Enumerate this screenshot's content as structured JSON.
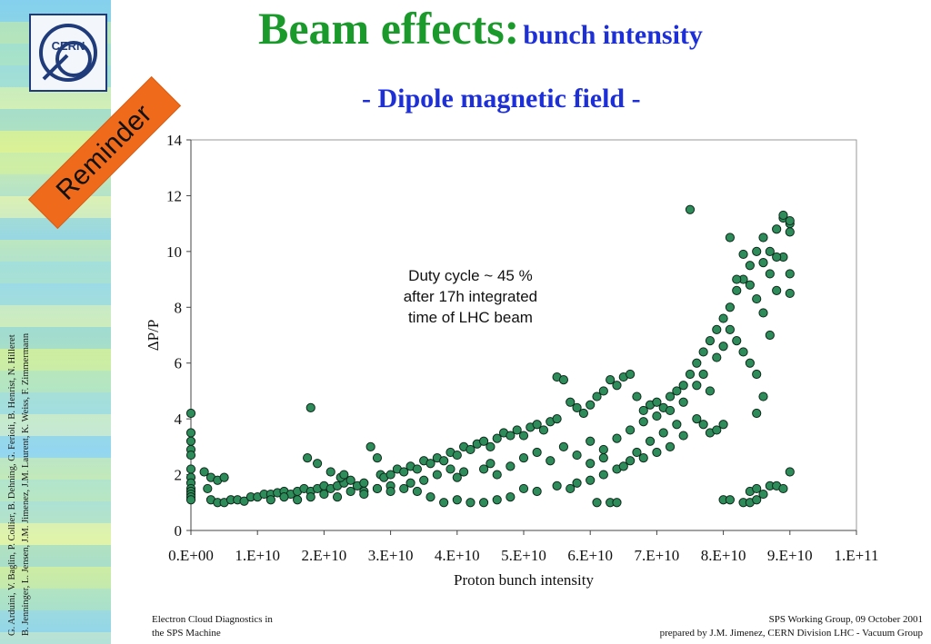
{
  "slide": {
    "title_main": "Beam effects:",
    "title_sub": "bunch intensity",
    "subtitle": "- Dipole magnetic field -",
    "badge": "Reminder",
    "logo_text": "CERN",
    "authors_line1": "G. Arduini, V. Baglin, P. Collier, B. Dehning, G. Ferioli, B. Henrist, N. Hilleret",
    "authors_line2": "B. Jenninger, L. Jensen, J.M. Jimenez, J.M. Laurent, K. Weiss, F. Zimmermann",
    "footer_left_1": "Electron Cloud Diagnostics in",
    "footer_left_2": "the SPS Machine",
    "footer_right_1": "SPS Working Group, 09 October 2001",
    "footer_right_2": "prepared by J.M. Jimenez, CERN Division LHC - Vacuum Group"
  },
  "colors": {
    "title_green": "#1b9a2c",
    "title_blue": "#1d2fd6",
    "badge_orange": "#ef6b1b",
    "marker_fill": "#2e8b5a",
    "marker_stroke": "#0d2a1a"
  },
  "chart_data": {
    "type": "scatter",
    "title": "",
    "xlabel": "Proton bunch intensity",
    "ylabel": "ΔP/P",
    "xlim": [
      0,
      100000000000
    ],
    "ylim": [
      0,
      14
    ],
    "xticks": [
      0,
      10000000000,
      20000000000,
      30000000000,
      40000000000,
      50000000000,
      60000000000,
      70000000000,
      80000000000,
      90000000000,
      100000000000
    ],
    "xtick_labels": [
      "0.E+00",
      "1.E+10",
      "2.E+10",
      "3.E+10",
      "4.E+10",
      "5.E+10",
      "6.E+10",
      "7.E+10",
      "8.E+10",
      "9.E+10",
      "1.E+11"
    ],
    "yticks": [
      0,
      2,
      4,
      6,
      8,
      10,
      12,
      14
    ],
    "ytick_labels": [
      "0",
      "2",
      "4",
      "6",
      "8",
      "10",
      "12",
      "14"
    ],
    "grid": false,
    "annotation": [
      "Duty cycle ~ 45 %",
      "after 17h integrated",
      "time of LHC beam"
    ],
    "series": [
      {
        "points": [
          [
            0,
            4.2
          ],
          [
            0,
            3.5
          ],
          [
            0,
            3.2
          ],
          [
            0,
            2.9
          ],
          [
            0,
            2.7
          ],
          [
            0,
            2.2
          ],
          [
            0,
            1.9
          ],
          [
            0,
            1.7
          ],
          [
            0,
            1.5
          ],
          [
            0,
            1.4
          ],
          [
            0,
            1.3
          ],
          [
            0,
            1.2
          ],
          [
            0,
            1.1
          ],
          [
            2000000000,
            2.1
          ],
          [
            3000000000,
            1.9
          ],
          [
            4000000000,
            1.8
          ],
          [
            5000000000,
            1.9
          ],
          [
            2500000000,
            1.5
          ],
          [
            3000000000,
            1.1
          ],
          [
            4000000000,
            1.0
          ],
          [
            5000000000,
            1.0
          ],
          [
            6000000000,
            1.1
          ],
          [
            7000000000,
            1.1
          ],
          [
            8000000000,
            1.05
          ],
          [
            9000000000,
            1.2
          ],
          [
            10000000000,
            1.2
          ],
          [
            11000000000,
            1.3
          ],
          [
            12000000000,
            1.3
          ],
          [
            13000000000,
            1.35
          ],
          [
            14000000000,
            1.4
          ],
          [
            15000000000,
            1.3
          ],
          [
            16000000000,
            1.4
          ],
          [
            17000000000,
            1.5
          ],
          [
            18000000000,
            1.4
          ],
          [
            19000000000,
            1.5
          ],
          [
            20000000000,
            1.6
          ],
          [
            21000000000,
            1.5
          ],
          [
            22000000000,
            1.6
          ],
          [
            23000000000,
            1.7
          ],
          [
            24000000000,
            1.8
          ],
          [
            25000000000,
            1.6
          ],
          [
            26000000000,
            1.7
          ],
          [
            17500000000,
            2.6
          ],
          [
            18000000000,
            4.4
          ],
          [
            19000000000,
            2.4
          ],
          [
            21000000000,
            2.1
          ],
          [
            22500000000,
            1.9
          ],
          [
            23000000000,
            2.0
          ],
          [
            27000000000,
            3.0
          ],
          [
            28000000000,
            2.6
          ],
          [
            28500000000,
            2.0
          ],
          [
            29000000000,
            1.9
          ],
          [
            30000000000,
            2.0
          ],
          [
            31000000000,
            2.2
          ],
          [
            32000000000,
            2.1
          ],
          [
            33000000000,
            2.3
          ],
          [
            34000000000,
            2.2
          ],
          [
            35000000000,
            2.5
          ],
          [
            36000000000,
            2.4
          ],
          [
            37000000000,
            2.6
          ],
          [
            38000000000,
            2.5
          ],
          [
            39000000000,
            2.8
          ],
          [
            40000000000,
            2.7
          ],
          [
            41000000000,
            3.0
          ],
          [
            42000000000,
            2.9
          ],
          [
            43000000000,
            3.1
          ],
          [
            44000000000,
            3.2
          ],
          [
            45000000000,
            3.0
          ],
          [
            46000000000,
            3.3
          ],
          [
            47000000000,
            3.5
          ],
          [
            48000000000,
            3.4
          ],
          [
            49000000000,
            3.6
          ],
          [
            50000000000,
            3.4
          ],
          [
            51000000000,
            3.7
          ],
          [
            52000000000,
            3.8
          ],
          [
            53000000000,
            3.6
          ],
          [
            54000000000,
            3.9
          ],
          [
            55000000000,
            4.0
          ],
          [
            55000000000,
            5.5
          ],
          [
            56000000000,
            5.4
          ],
          [
            57000000000,
            4.6
          ],
          [
            58000000000,
            4.4
          ],
          [
            59000000000,
            4.2
          ],
          [
            60000000000,
            4.5
          ],
          [
            61000000000,
            4.8
          ],
          [
            62000000000,
            5.0
          ],
          [
            63000000000,
            5.4
          ],
          [
            64000000000,
            5.2
          ],
          [
            65000000000,
            5.5
          ],
          [
            66000000000,
            5.6
          ],
          [
            67000000000,
            4.8
          ],
          [
            68000000000,
            4.3
          ],
          [
            69000000000,
            4.5
          ],
          [
            70000000000,
            4.6
          ],
          [
            71000000000,
            4.4
          ],
          [
            72000000000,
            4.8
          ],
          [
            73000000000,
            5.0
          ],
          [
            74000000000,
            5.2
          ],
          [
            75000000000,
            5.6
          ],
          [
            76000000000,
            6.0
          ],
          [
            77000000000,
            6.4
          ],
          [
            78000000000,
            6.8
          ],
          [
            79000000000,
            7.2
          ],
          [
            80000000000,
            7.6
          ],
          [
            81000000000,
            8.0
          ],
          [
            82000000000,
            8.6
          ],
          [
            83000000000,
            9.0
          ],
          [
            84000000000,
            9.5
          ],
          [
            85000000000,
            10.0
          ],
          [
            86000000000,
            10.5
          ],
          [
            87000000000,
            10.0
          ],
          [
            88000000000,
            10.8
          ],
          [
            89000000000,
            11.2
          ],
          [
            90000000000,
            11.0
          ],
          [
            89000000000,
            11.3
          ],
          [
            90000000000,
            11.1
          ],
          [
            90000000000,
            10.7
          ],
          [
            90000000000,
            9.2
          ],
          [
            90000000000,
            8.5
          ],
          [
            89000000000,
            9.8
          ],
          [
            75000000000,
            11.5
          ],
          [
            81000000000,
            10.5
          ],
          [
            82000000000,
            9.0
          ],
          [
            83000000000,
            9.9
          ],
          [
            84000000000,
            8.8
          ],
          [
            85000000000,
            8.3
          ],
          [
            86000000000,
            7.8
          ],
          [
            87000000000,
            7.0
          ],
          [
            88000000000,
            8.6
          ],
          [
            86000000000,
            9.6
          ],
          [
            87000000000,
            9.2
          ],
          [
            88000000000,
            9.8
          ],
          [
            76000000000,
            5.2
          ],
          [
            77000000000,
            5.6
          ],
          [
            78000000000,
            5.0
          ],
          [
            79000000000,
            6.2
          ],
          [
            80000000000,
            6.6
          ],
          [
            81000000000,
            7.2
          ],
          [
            82000000000,
            6.8
          ],
          [
            83000000000,
            6.4
          ],
          [
            84000000000,
            6.0
          ],
          [
            85000000000,
            5.6
          ],
          [
            86000000000,
            4.8
          ],
          [
            85000000000,
            4.2
          ],
          [
            76000000000,
            4.0
          ],
          [
            77000000000,
            3.8
          ],
          [
            78000000000,
            3.5
          ],
          [
            79000000000,
            3.6
          ],
          [
            80000000000,
            3.8
          ],
          [
            74000000000,
            3.4
          ],
          [
            72000000000,
            3.0
          ],
          [
            70000000000,
            2.8
          ],
          [
            68000000000,
            2.6
          ],
          [
            66000000000,
            2.5
          ],
          [
            64000000000,
            2.2
          ],
          [
            62000000000,
            2.0
          ],
          [
            60000000000,
            1.8
          ],
          [
            58000000000,
            1.7
          ],
          [
            57000000000,
            1.5
          ],
          [
            55000000000,
            1.6
          ],
          [
            52000000000,
            1.4
          ],
          [
            50000000000,
            1.5
          ],
          [
            48000000000,
            1.2
          ],
          [
            46000000000,
            1.1
          ],
          [
            44000000000,
            1.0
          ],
          [
            42000000000,
            1.0
          ],
          [
            40000000000,
            1.1
          ],
          [
            38000000000,
            1.0
          ],
          [
            36000000000,
            1.2
          ],
          [
            34000000000,
            1.4
          ],
          [
            32000000000,
            1.5
          ],
          [
            30000000000,
            1.6
          ],
          [
            28000000000,
            1.5
          ],
          [
            26000000000,
            1.4
          ],
          [
            61000000000,
            1.0
          ],
          [
            63000000000,
            1.0
          ],
          [
            64000000000,
            1.0
          ],
          [
            80000000000,
            1.1
          ],
          [
            81000000000,
            1.1
          ],
          [
            83000000000,
            1.0
          ],
          [
            84000000000,
            1.0
          ],
          [
            85000000000,
            1.1
          ],
          [
            86000000000,
            1.3
          ],
          [
            87000000000,
            1.6
          ],
          [
            88000000000,
            1.6
          ],
          [
            89000000000,
            1.5
          ],
          [
            90000000000,
            2.1
          ],
          [
            84000000000,
            1.4
          ],
          [
            85000000000,
            1.5
          ],
          [
            44000000000,
            2.2
          ],
          [
            45000000000,
            2.4
          ],
          [
            46000000000,
            2.0
          ],
          [
            48000000000,
            2.3
          ],
          [
            50000000000,
            2.6
          ],
          [
            52000000000,
            2.8
          ],
          [
            54000000000,
            2.5
          ],
          [
            56000000000,
            3.0
          ],
          [
            58000000000,
            2.7
          ],
          [
            60000000000,
            3.2
          ],
          [
            62000000000,
            2.9
          ],
          [
            64000000000,
            3.3
          ],
          [
            66000000000,
            3.6
          ],
          [
            68000000000,
            3.9
          ],
          [
            70000000000,
            4.1
          ],
          [
            72000000000,
            4.3
          ],
          [
            74000000000,
            4.6
          ],
          [
            60000000000,
            2.4
          ],
          [
            62000000000,
            2.6
          ],
          [
            65000000000,
            2.3
          ],
          [
            67000000000,
            2.8
          ],
          [
            69000000000,
            3.2
          ],
          [
            71000000000,
            3.5
          ],
          [
            73000000000,
            3.8
          ],
          [
            40000000000,
            1.9
          ],
          [
            41000000000,
            2.1
          ],
          [
            39000000000,
            2.2
          ],
          [
            37000000000,
            2.0
          ],
          [
            35000000000,
            1.8
          ],
          [
            33000000000,
            1.7
          ],
          [
            12000000000,
            1.1
          ],
          [
            14000000000,
            1.2
          ],
          [
            16000000000,
            1.1
          ],
          [
            18000000000,
            1.2
          ],
          [
            20000000000,
            1.3
          ],
          [
            22000000000,
            1.2
          ],
          [
            24000000000,
            1.4
          ],
          [
            26000000000,
            1.3
          ],
          [
            28000000000,
            1.5
          ],
          [
            30000000000,
            1.4
          ]
        ]
      }
    ]
  }
}
